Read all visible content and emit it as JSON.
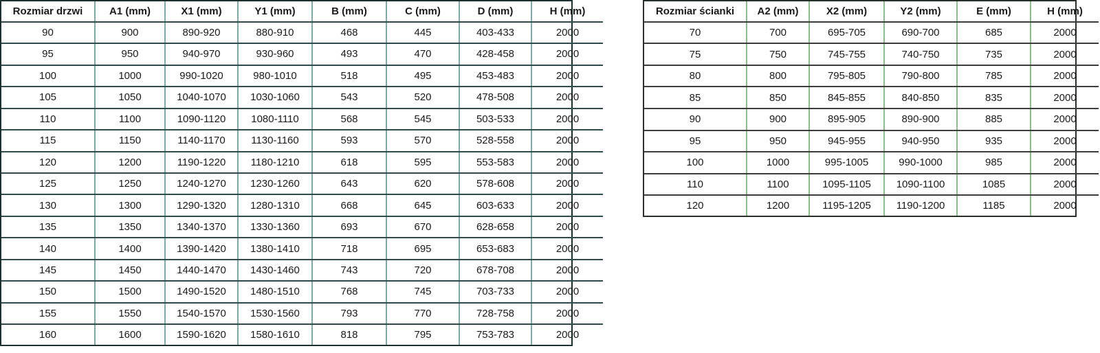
{
  "page": {
    "background": "#ffffff",
    "text_color": "#1a1a1a"
  },
  "door_table": {
    "id": "door-size-table",
    "headers": [
      "Rozmiar drzwi",
      "A1 (mm)",
      "X1 (mm)",
      "Y1 (mm)",
      "B (mm)",
      "C (mm)",
      "D (mm)",
      "H (mm)"
    ],
    "rows": [
      [
        "90",
        "900",
        "890-920",
        "880-910",
        "468",
        "445",
        "403-433",
        "2000"
      ],
      [
        "95",
        "950",
        "940-970",
        "930-960",
        "493",
        "470",
        "428-458",
        "2000"
      ],
      [
        "100",
        "1000",
        "990-1020",
        "980-1010",
        "518",
        "495",
        "453-483",
        "2000"
      ],
      [
        "105",
        "1050",
        "1040-1070",
        "1030-1060",
        "543",
        "520",
        "478-508",
        "2000"
      ],
      [
        "110",
        "1100",
        "1090-1120",
        "1080-1110",
        "568",
        "545",
        "503-533",
        "2000"
      ],
      [
        "115",
        "1150",
        "1140-1170",
        "1130-1160",
        "593",
        "570",
        "528-558",
        "2000"
      ],
      [
        "120",
        "1200",
        "1190-1220",
        "1180-1210",
        "618",
        "595",
        "553-583",
        "2000"
      ],
      [
        "125",
        "1250",
        "1240-1270",
        "1230-1260",
        "643",
        "620",
        "578-608",
        "2000"
      ],
      [
        "130",
        "1300",
        "1290-1320",
        "1280-1310",
        "668",
        "645",
        "603-633",
        "2000"
      ],
      [
        "135",
        "1350",
        "1340-1370",
        "1330-1360",
        "693",
        "670",
        "628-658",
        "2000"
      ],
      [
        "140",
        "1400",
        "1390-1420",
        "1380-1410",
        "718",
        "695",
        "653-683",
        "2000"
      ],
      [
        "145",
        "1450",
        "1440-1470",
        "1430-1460",
        "743",
        "720",
        "678-708",
        "2000"
      ],
      [
        "150",
        "1500",
        "1490-1520",
        "1480-1510",
        "768",
        "745",
        "703-733",
        "2000"
      ],
      [
        "155",
        "1550",
        "1540-1570",
        "1530-1560",
        "793",
        "770",
        "728-758",
        "2000"
      ],
      [
        "160",
        "1600",
        "1590-1620",
        "1580-1610",
        "818",
        "795",
        "753-783",
        "2000"
      ]
    ],
    "colors": {
      "outer_border": "#1e2f2f",
      "horizontal_border": "#2f4a4a",
      "vertical_border": "#82a9a9",
      "text": "#1a1a1a"
    }
  },
  "wall_table": {
    "id": "wall-size-table",
    "headers": [
      "Rozmiar ścianki",
      "A2 (mm)",
      "X2 (mm)",
      "Y2 (mm)",
      "E (mm)",
      "H (mm)"
    ],
    "rows": [
      [
        "70",
        "700",
        "695-705",
        "690-700",
        "685",
        "2000"
      ],
      [
        "75",
        "750",
        "745-755",
        "740-750",
        "735",
        "2000"
      ],
      [
        "80",
        "800",
        "795-805",
        "790-800",
        "785",
        "2000"
      ],
      [
        "85",
        "850",
        "845-855",
        "840-850",
        "835",
        "2000"
      ],
      [
        "90",
        "900",
        "895-905",
        "890-900",
        "885",
        "2000"
      ],
      [
        "95",
        "950",
        "945-955",
        "940-950",
        "935",
        "2000"
      ],
      [
        "100",
        "1000",
        "995-1005",
        "990-1000",
        "985",
        "2000"
      ],
      [
        "110",
        "1100",
        "1095-1105",
        "1090-1100",
        "1085",
        "2000"
      ],
      [
        "120",
        "1200",
        "1195-1205",
        "1190-1200",
        "1185",
        "2000"
      ]
    ],
    "colors": {
      "outer_border": "#28302a",
      "horizontal_border": "#3c3c3c",
      "vertical_border": "#8dbb8d",
      "text": "#1a1a1a"
    }
  }
}
